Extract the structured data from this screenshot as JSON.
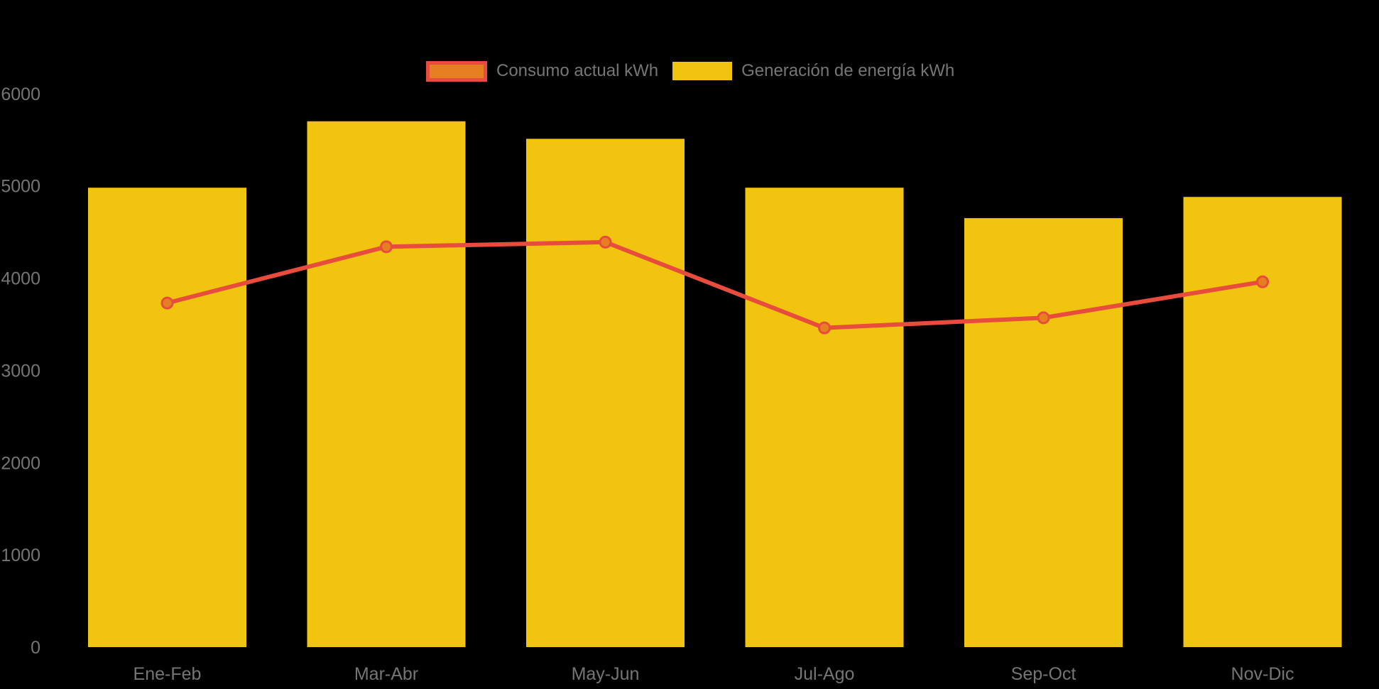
{
  "colors": {
    "background": "#000000",
    "bar_fill": "#F1C40F",
    "line_stroke": "#E74C3C",
    "point_fill": "#E67E22",
    "axis_text": "#757575",
    "legend_text": "#767676"
  },
  "legend": {
    "items": [
      {
        "label": "Consumo actual kWh",
        "marker": "line-swatch"
      },
      {
        "label": "Generación de energía kWh",
        "marker": "bar-swatch"
      }
    ]
  },
  "chart_data": {
    "type": "bar",
    "title": "",
    "xlabel": "",
    "ylabel": "",
    "categories": [
      "Ene-Feb",
      "Mar-Abr",
      "May-Jun",
      "Jul-Ago",
      "Sep-Oct",
      "Nov-Dic"
    ],
    "series": [
      {
        "name": "Consumo actual kWh",
        "type": "line",
        "values": [
          3730,
          4340,
          4390,
          3460,
          3570,
          3960
        ]
      },
      {
        "name": "Generación de energía kWh",
        "type": "bar",
        "values": [
          4980,
          5700,
          5510,
          4980,
          4650,
          4880
        ]
      }
    ],
    "ylim": [
      0,
      6000
    ],
    "yticks": [
      0,
      1000,
      2000,
      3000,
      4000,
      5000,
      6000
    ],
    "grid": false,
    "legend_position": "top-center"
  }
}
